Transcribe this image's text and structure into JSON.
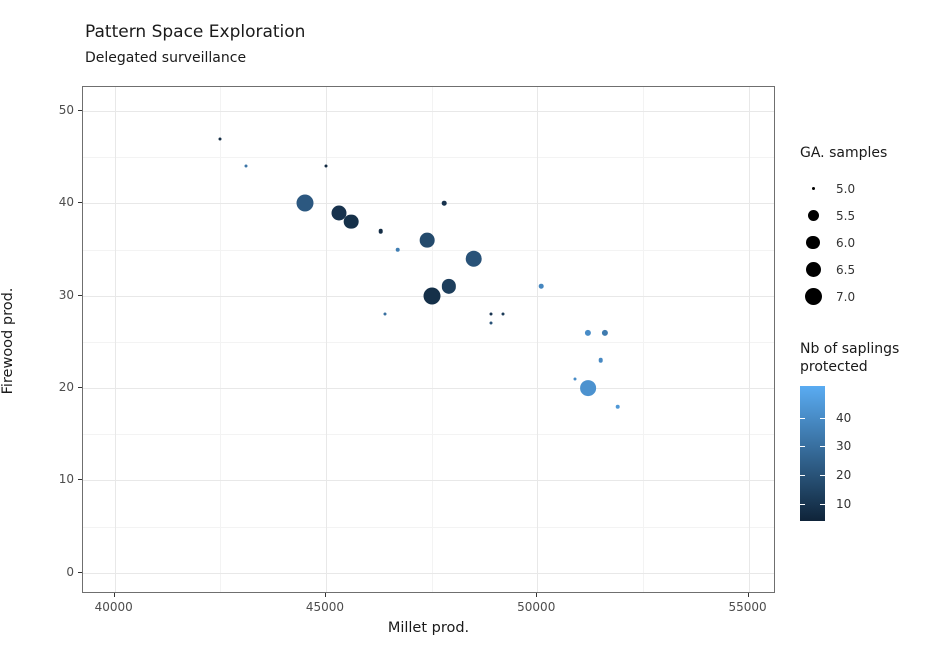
{
  "title": "Pattern Space Exploration",
  "subtitle": "Delegated surveillance",
  "chart_data": {
    "type": "scatter",
    "title": "Pattern Space Exploration",
    "subtitle": "Delegated surveillance",
    "xlabel": "Millet prod.",
    "ylabel": "Firewood prod.",
    "xlim": [
      39250,
      55650
    ],
    "ylim": [
      -2.3,
      52.6
    ],
    "x_major_ticks": [
      40000,
      45000,
      50000,
      55000
    ],
    "x_minor_ticks": [
      42500,
      47500,
      52500
    ],
    "y_major_ticks": [
      0,
      10,
      20,
      30,
      40,
      50
    ],
    "y_minor_ticks": [
      5,
      15,
      25,
      35,
      45
    ],
    "grid": true,
    "legend_position": "right",
    "points": [
      {
        "millet": 42500,
        "firewood": 47,
        "ga": 5.0,
        "saplings": 7
      },
      {
        "millet": 43100,
        "firewood": 44,
        "ga": 5.0,
        "saplings": 32
      },
      {
        "millet": 45000,
        "firewood": 44,
        "ga": 5.0,
        "saplings": 6
      },
      {
        "millet": 44500,
        "firewood": 40,
        "ga": 7.0,
        "saplings": 22
      },
      {
        "millet": 45300,
        "firewood": 39,
        "ga": 6.5,
        "saplings": 9
      },
      {
        "millet": 45600,
        "firewood": 38,
        "ga": 6.4,
        "saplings": 8
      },
      {
        "millet": 46300,
        "firewood": 37,
        "ga": 5.1,
        "saplings": 7
      },
      {
        "millet": 46700,
        "firewood": 35,
        "ga": 5.1,
        "saplings": 35
      },
      {
        "millet": 47400,
        "firewood": 36,
        "ga": 6.4,
        "saplings": 17
      },
      {
        "millet": 47800,
        "firewood": 40,
        "ga": 5.1,
        "saplings": 9
      },
      {
        "millet": 48500,
        "firewood": 34,
        "ga": 6.9,
        "saplings": 20
      },
      {
        "millet": 47500,
        "firewood": 30,
        "ga": 7.0,
        "saplings": 8
      },
      {
        "millet": 47900,
        "firewood": 31,
        "ga": 6.3,
        "saplings": 13
      },
      {
        "millet": 50100,
        "firewood": 31,
        "ga": 5.1,
        "saplings": 38
      },
      {
        "millet": 46400,
        "firewood": 28,
        "ga": 5.0,
        "saplings": 30
      },
      {
        "millet": 48900,
        "firewood": 28,
        "ga": 5.0,
        "saplings": 10
      },
      {
        "millet": 49200,
        "firewood": 28,
        "ga": 5.0,
        "saplings": 12
      },
      {
        "millet": 48900,
        "firewood": 27,
        "ga": 5.0,
        "saplings": 20
      },
      {
        "millet": 51200,
        "firewood": 26,
        "ga": 5.2,
        "saplings": 40
      },
      {
        "millet": 51600,
        "firewood": 26,
        "ga": 5.2,
        "saplings": 34
      },
      {
        "millet": 51500,
        "firewood": 23,
        "ga": 5.1,
        "saplings": 39
      },
      {
        "millet": 50900,
        "firewood": 21,
        "ga": 5.0,
        "saplings": 40
      },
      {
        "millet": 51200,
        "firewood": 20,
        "ga": 6.7,
        "saplings": 42
      },
      {
        "millet": 51900,
        "firewood": 18,
        "ga": 5.1,
        "saplings": 44
      }
    ],
    "size_legend": {
      "title": "GA. samples",
      "entries": [
        {
          "label": "5.0",
          "value": 5.0
        },
        {
          "label": "5.5",
          "value": 5.5
        },
        {
          "label": "6.0",
          "value": 6.0
        },
        {
          "label": "6.5",
          "value": 6.5
        },
        {
          "label": "7.0",
          "value": 7.0
        }
      ],
      "size_scale": [
        [
          5.0,
          3
        ],
        [
          5.5,
          11
        ],
        [
          6.0,
          13.3
        ],
        [
          6.5,
          15
        ],
        [
          7.0,
          17
        ]
      ]
    },
    "color_legend": {
      "title_lines": [
        "Nb of saplings",
        "protected"
      ],
      "ticks": [
        40,
        30,
        20,
        10
      ],
      "domain": [
        4,
        51
      ],
      "low_color": "#0f2439",
      "high_color": "#5aacf2"
    }
  },
  "colors": {
    "background": "#ffffff",
    "panel_border": "#6f6f6f",
    "grid_major": "#e8e8e8",
    "grid_minor": "#f3f3f3",
    "text": "#1a1a1a",
    "tick_text": "#4d4d4d",
    "legend_key": "#000000"
  }
}
